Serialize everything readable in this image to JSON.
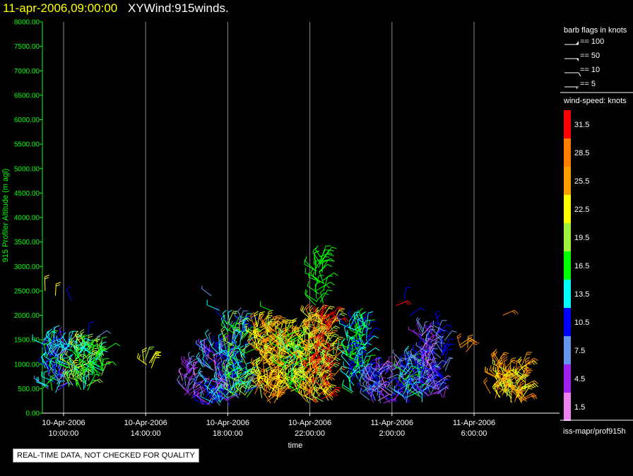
{
  "header": {
    "time": "11-apr-2006,09:00:00",
    "name": "XYWind:915winds."
  },
  "footer": {
    "qc_notice": "REAL-TIME DATA, NOT CHECKED FOR QUALITY",
    "source": "iss-mapr/prof915h"
  },
  "legend": {
    "barb_title": "barb flags in knots",
    "barbs": [
      "== 100",
      "== 50",
      "== 10",
      "== 5"
    ],
    "speed_title": "wind-speed: knots",
    "speed_bins": [
      {
        "label": "31.5",
        "color": "#ff0000"
      },
      {
        "label": "28.5",
        "color": "#ff8000"
      },
      {
        "label": "25.5",
        "color": "#ffa000"
      },
      {
        "label": "22.5",
        "color": "#ffff00"
      },
      {
        "label": "19.5",
        "color": "#a0f040"
      },
      {
        "label": "16.5",
        "color": "#00ff00"
      },
      {
        "label": "13.5",
        "color": "#00ffff"
      },
      {
        "label": "10.5",
        "color": "#0000ff"
      },
      {
        "label": "7.5",
        "color": "#6495ed"
      },
      {
        "label": "4.5",
        "color": "#a020f0"
      },
      {
        "label": "1.5",
        "color": "#ee82ee"
      }
    ]
  },
  "chart_data": {
    "type": "scatter",
    "title": "11-apr-2006,09:00:00 XYWind:915winds.",
    "xlabel": "time",
    "ylabel": "915 Profiler Altitude (m agl)",
    "ylim": [
      0,
      8000
    ],
    "yticks": [
      "0.00",
      "500.00",
      "1000.00",
      "1500.00",
      "2000.00",
      "2500.00",
      "3000.00",
      "3500.00",
      "4000.00",
      "4500.00",
      "5000.00",
      "5500.00",
      "6000.00",
      "6500.00",
      "7000.00",
      "7500.00",
      "8000.00"
    ],
    "xticks": [
      {
        "date": "10-Apr-2006",
        "time": "10:00:00"
      },
      {
        "date": "10-Apr-2006",
        "time": "14:00:00"
      },
      {
        "date": "10-Apr-2006",
        "time": "18:00:00"
      },
      {
        "date": "10-Apr-2006",
        "time": "22:00:00"
      },
      {
        "date": "11-Apr-2006",
        "time": "2:00:00"
      },
      {
        "date": "11-Apr-2006",
        "time": "6:00:00"
      }
    ],
    "grid": "vertical",
    "xlim_hours": [
      9,
      24.5
    ],
    "clusters": [
      {
        "t0": 9.0,
        "t1": 10.0,
        "h0": 400,
        "h1": 1500,
        "spd": [
          5,
          16
        ]
      },
      {
        "t0": 10.2,
        "t1": 11.3,
        "h0": 450,
        "h1": 1450,
        "spd": [
          12,
          22
        ]
      },
      {
        "t0": 11.3,
        "t1": 12.0,
        "h0": 700,
        "h1": 1300,
        "spd": [
          14,
          20
        ]
      },
      {
        "t0": 13.9,
        "t1": 14.3,
        "h0": 900,
        "h1": 1100,
        "spd": [
          20,
          23
        ]
      },
      {
        "t0": 15.8,
        "t1": 16.5,
        "h0": 300,
        "h1": 1000,
        "spd": [
          2,
          9
        ]
      },
      {
        "t0": 16.8,
        "t1": 18.1,
        "h0": 150,
        "h1": 1400,
        "spd": [
          2,
          14
        ]
      },
      {
        "t0": 17.9,
        "t1": 19.0,
        "h0": 300,
        "h1": 1900,
        "spd": [
          8,
          20
        ]
      },
      {
        "t0": 19.3,
        "t1": 20.6,
        "h0": 200,
        "h1": 1800,
        "spd": [
          20,
          30
        ]
      },
      {
        "t0": 20.6,
        "t1": 21.8,
        "h0": 400,
        "h1": 1700,
        "spd": [
          14,
          26
        ]
      },
      {
        "t0": 21.8,
        "t1": 23.2,
        "h0": 200,
        "h1": 2000,
        "spd": [
          18,
          33
        ]
      },
      {
        "t0": 22.2,
        "t1": 22.7,
        "h0": 2200,
        "h1": 3200,
        "spd": [
          16,
          18
        ]
      },
      {
        "t0": 23.8,
        "t1": 24.8,
        "h0": 400,
        "h1": 1900,
        "spd": [
          10,
          18
        ]
      },
      {
        "t0": 24.8,
        "t1": 26.4,
        "h0": 200,
        "h1": 900,
        "spd": [
          2,
          12
        ]
      },
      {
        "t0": 26.4,
        "t1": 27.6,
        "h0": 200,
        "h1": 1100,
        "spd": [
          6,
          16
        ]
      },
      {
        "t0": 27.4,
        "t1": 28.6,
        "h0": 300,
        "h1": 1700,
        "spd": [
          2,
          12
        ]
      },
      {
        "t0": 29.2,
        "t1": 29.8,
        "h0": 1300,
        "h1": 1400,
        "spd": [
          24,
          28
        ]
      },
      {
        "t0": 31.0,
        "t1": 32.6,
        "h0": 200,
        "h1": 1000,
        "spd": [
          20,
          30
        ]
      }
    ],
    "isolated": [
      {
        "t": 9.1,
        "h": 2500,
        "spd": 23
      },
      {
        "t": 9.6,
        "h": 2400,
        "spd": 23
      },
      {
        "t": 10.4,
        "h": 2300,
        "spd": 9
      },
      {
        "t": 11.2,
        "h": 1600,
        "spd": 9
      },
      {
        "t": 11.6,
        "h": 1550,
        "spd": 8
      },
      {
        "t": 17.2,
        "h": 2400,
        "spd": 7
      },
      {
        "t": 17.6,
        "h": 2100,
        "spd": 14
      },
      {
        "t": 20.1,
        "h": 2100,
        "spd": 17
      },
      {
        "t": 22.7,
        "h": 1950,
        "spd": 31
      },
      {
        "t": 26.2,
        "h": 2200,
        "spd": 31
      },
      {
        "t": 26.6,
        "h": 2300,
        "spd": 10
      },
      {
        "t": 26.9,
        "h": 2000,
        "spd": 11
      },
      {
        "t": 28.3,
        "h": 1800,
        "spd": 11
      },
      {
        "t": 29.6,
        "h": 1250,
        "spd": 27
      },
      {
        "t": 31.4,
        "h": 2000,
        "spd": 27
      },
      {
        "t": 30.8,
        "h": 400,
        "spd": 27
      }
    ]
  }
}
